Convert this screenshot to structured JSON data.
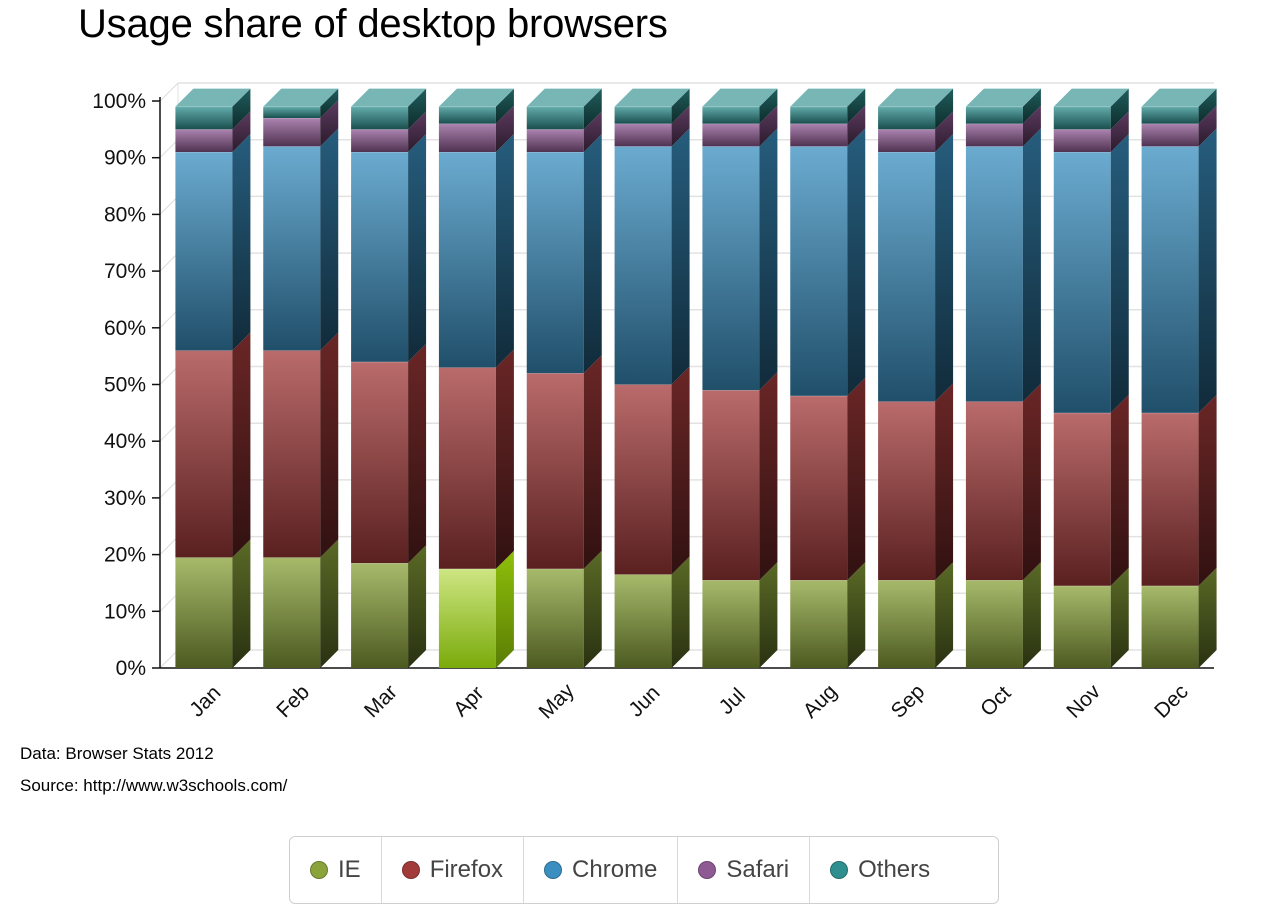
{
  "chart_data": {
    "type": "bar",
    "stacked": true,
    "three_d": true,
    "title": "Usage share of desktop browsers",
    "xlabel": "",
    "ylabel": "",
    "ylim": [
      0,
      100
    ],
    "yticks": [
      "0%",
      "10%",
      "20%",
      "30%",
      "40%",
      "50%",
      "60%",
      "70%",
      "80%",
      "90%",
      "100%"
    ],
    "ytick_values": [
      0,
      10,
      20,
      30,
      40,
      50,
      60,
      70,
      80,
      90,
      100
    ],
    "categories": [
      "Jan",
      "Feb",
      "Mar",
      "Apr",
      "May",
      "Jun",
      "Jul",
      "Aug",
      "Sep",
      "Oct",
      "Nov",
      "Dec"
    ],
    "highlighted_category": "Apr",
    "series": [
      {
        "name": "IE",
        "color": "#8aa33a",
        "values": [
          19.5,
          19.5,
          18.5,
          17.5,
          17.5,
          16.5,
          15.5,
          15.5,
          15.5,
          15.5,
          14.5,
          14.5
        ]
      },
      {
        "name": "Firefox",
        "color": "#a33a3a",
        "values": [
          36.5,
          36.5,
          35.5,
          35.5,
          34.5,
          33.5,
          33.5,
          32.5,
          31.5,
          31.5,
          30.5,
          30.5
        ]
      },
      {
        "name": "Chrome",
        "color": "#3a8fc0",
        "values": [
          35.0,
          36.0,
          37.0,
          38.0,
          39.0,
          42.0,
          43.0,
          44.0,
          44.0,
          45.0,
          46.0,
          47.0
        ]
      },
      {
        "name": "Safari",
        "color": "#8f5a94",
        "values": [
          4.0,
          5.0,
          4.0,
          5.0,
          4.0,
          4.0,
          4.0,
          4.0,
          4.0,
          4.0,
          4.0,
          4.0
        ]
      },
      {
        "name": "Others",
        "color": "#2f8f8f",
        "values": [
          4.0,
          2.0,
          4.0,
          3.0,
          4.0,
          3.0,
          3.0,
          3.0,
          4.0,
          3.0,
          4.0,
          3.0
        ]
      }
    ]
  },
  "notes": {
    "data": "Data: Browser Stats 2012",
    "source": "Source: http://www.w3schools.com/"
  }
}
